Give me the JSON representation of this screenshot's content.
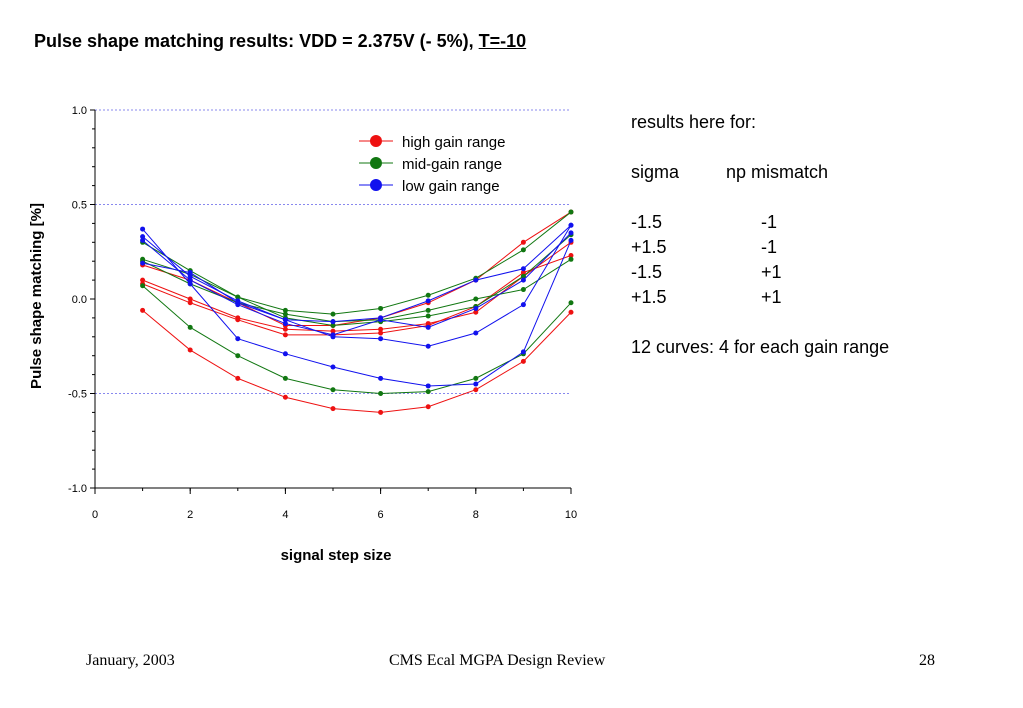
{
  "slide": {
    "title_prefix": "Pulse shape matching results: VDD = 2.375V (- 5%), ",
    "title_underlined": "T=-10",
    "notes": {
      "heading": "results here for:",
      "col_sigma": "sigma",
      "col_np": "np mismatch",
      "rows": [
        {
          "sigma": "-1.5",
          "np": "-1"
        },
        {
          "sigma": "+1.5",
          "np": "-1"
        },
        {
          "sigma": "-1.5",
          "np": "+1"
        },
        {
          "sigma": "+1.5",
          "np": "+1"
        }
      ],
      "summary": "12 curves: 4 for each gain range"
    },
    "footer": {
      "date": "January, 2003",
      "center": "CMS Ecal MGPA Design Review",
      "page": "28"
    }
  },
  "chart_data": {
    "type": "line",
    "xlabel": "signal step size",
    "ylabel": "Pulse shape matching [%]",
    "xlim": [
      0,
      10
    ],
    "ylim": [
      -1.0,
      1.0
    ],
    "xticks": [
      "0",
      "2",
      "4",
      "6",
      "8",
      "10"
    ],
    "yticks": [
      "1.0",
      "0.5",
      "0.0",
      "-0.5",
      "-1.0"
    ],
    "gridlines_y": [
      1.0,
      0.5,
      -0.5,
      -1.0
    ],
    "legend": [
      {
        "label": "high gain range",
        "color": "#ee1111"
      },
      {
        "label": "mid-gain range",
        "color": "#117711"
      },
      {
        "label": "low gain range",
        "color": "#1111ee"
      }
    ],
    "x": [
      1,
      2,
      3,
      4,
      5,
      6,
      7,
      8,
      9,
      10
    ],
    "series": [
      {
        "name": "high gain range",
        "color": "#ee1111",
        "values": [
          -0.06,
          -0.27,
          -0.42,
          -0.52,
          -0.58,
          -0.6,
          -0.57,
          -0.48,
          -0.33,
          -0.07
        ]
      },
      {
        "name": "high gain range",
        "color": "#ee1111",
        "values": [
          0.1,
          0.0,
          -0.1,
          -0.16,
          -0.17,
          -0.16,
          -0.13,
          -0.07,
          0.12,
          0.3
        ]
      },
      {
        "name": "high gain range",
        "color": "#ee1111",
        "values": [
          0.08,
          -0.02,
          -0.11,
          -0.19,
          -0.19,
          -0.18,
          -0.14,
          -0.04,
          0.14,
          0.23
        ]
      },
      {
        "name": "high gain range",
        "color": "#ee1111",
        "values": [
          0.18,
          0.1,
          -0.02,
          -0.14,
          -0.14,
          -0.1,
          -0.02,
          0.1,
          0.3,
          0.46
        ]
      },
      {
        "name": "mid-gain range",
        "color": "#117711",
        "values": [
          0.07,
          -0.15,
          -0.3,
          -0.42,
          -0.48,
          -0.5,
          -0.49,
          -0.42,
          -0.29,
          -0.02
        ]
      },
      {
        "name": "mid-gain range",
        "color": "#117711",
        "values": [
          0.21,
          0.13,
          0.01,
          -0.06,
          -0.08,
          -0.05,
          0.02,
          0.11,
          0.26,
          0.46
        ]
      },
      {
        "name": "mid-gain range",
        "color": "#117711",
        "values": [
          0.2,
          0.08,
          -0.02,
          -0.08,
          -0.12,
          -0.11,
          -0.06,
          0.0,
          0.05,
          0.21
        ]
      },
      {
        "name": "mid-gain range",
        "color": "#117711",
        "values": [
          0.3,
          0.15,
          0.01,
          -0.1,
          -0.14,
          -0.12,
          -0.09,
          -0.04,
          0.12,
          0.34
        ]
      },
      {
        "name": "low gain range",
        "color": "#1111ee",
        "values": [
          0.37,
          0.08,
          -0.21,
          -0.29,
          -0.36,
          -0.42,
          -0.46,
          -0.45,
          -0.28,
          0.31
        ]
      },
      {
        "name": "low gain range",
        "color": "#1111ee",
        "values": [
          0.33,
          0.12,
          -0.01,
          -0.11,
          -0.12,
          -0.1,
          -0.01,
          0.1,
          0.16,
          0.39
        ]
      },
      {
        "name": "low gain range",
        "color": "#1111ee",
        "values": [
          0.19,
          0.14,
          -0.02,
          -0.11,
          -0.2,
          -0.21,
          -0.25,
          -0.18,
          -0.03,
          0.39
        ]
      },
      {
        "name": "low gain range",
        "color": "#1111ee",
        "values": [
          0.31,
          0.1,
          -0.03,
          -0.13,
          -0.19,
          -0.11,
          -0.15,
          -0.05,
          0.1,
          0.35
        ]
      }
    ]
  }
}
